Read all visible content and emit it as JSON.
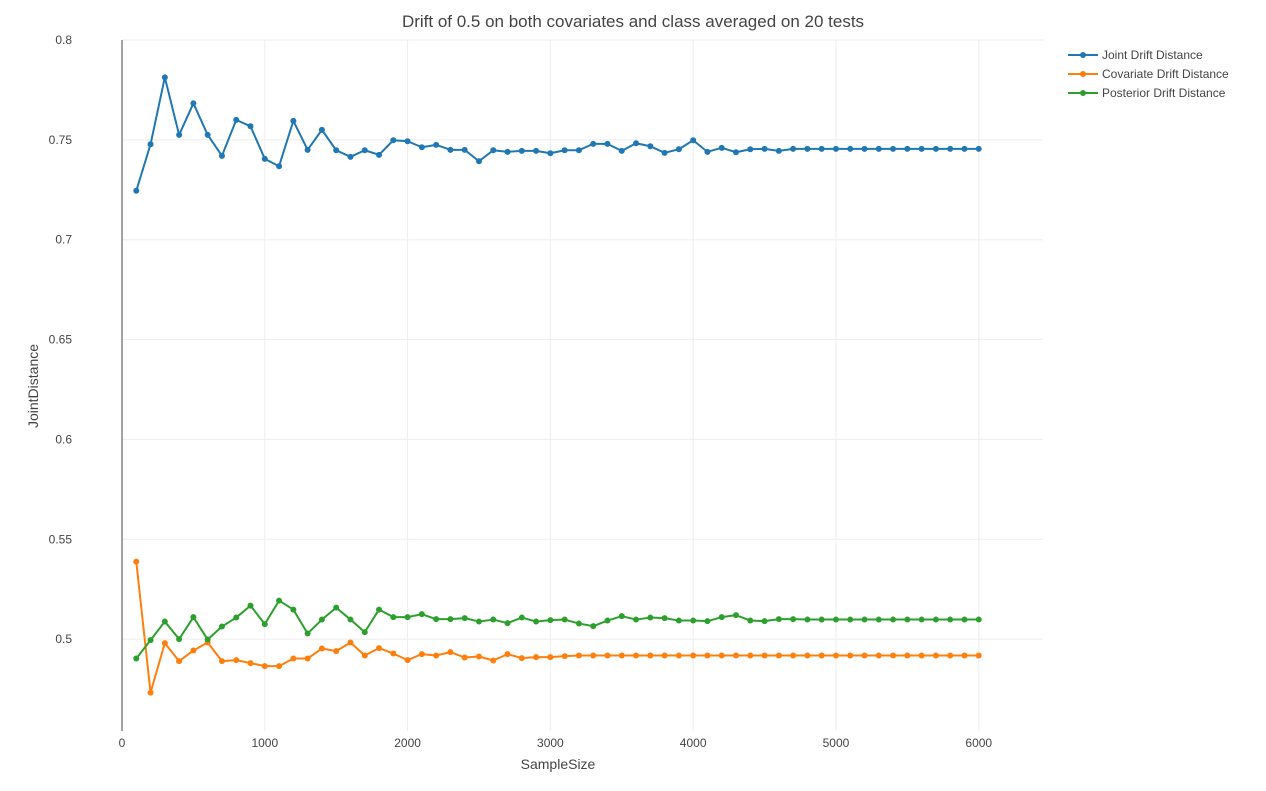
{
  "chart_data": {
    "type": "line",
    "title": "Drift of 0.5 on both covariates and class averaged on 20 tests",
    "xlabel": "SampleSize",
    "ylabel": "JointDistance",
    "xlim": [
      0,
      6450
    ],
    "ylim": [
      0.454,
      0.8
    ],
    "x_ticks": [
      "0",
      "1000",
      "2000",
      "3000",
      "4000",
      "5000",
      "6000"
    ],
    "y_ticks": [
      "0.8",
      "0.75",
      "0.7",
      "0.65",
      "0.6",
      "0.55",
      "0.5"
    ],
    "x_tick_values": [
      0,
      1000,
      2000,
      3000,
      4000,
      5000,
      6000
    ],
    "y_tick_values": [
      0.8,
      0.75,
      0.7,
      0.65,
      0.6,
      0.55,
      0.5
    ],
    "grid": true,
    "legend_position": "top-right",
    "x": [
      100,
      200,
      300,
      400,
      500,
      600,
      700,
      800,
      900,
      1000,
      1100,
      1200,
      1300,
      1400,
      1500,
      1600,
      1700,
      1800,
      1900,
      2000,
      2100,
      2200,
      2300,
      2400,
      2500,
      2600,
      2700,
      2800,
      2900,
      3000,
      3100,
      3200,
      3300,
      3400,
      3500,
      3600,
      3700,
      3800,
      3900,
      4000,
      4100,
      4200,
      4300,
      4400,
      4500,
      4600,
      4700,
      4800,
      4900,
      5000,
      5100,
      5200,
      5300,
      5400,
      5500,
      5600,
      5700,
      5800,
      5900,
      6000
    ],
    "series": [
      {
        "name": "Joint Drift Distance",
        "color": "#1f77b4",
        "values": [
          0.7245,
          0.7478,
          0.7813,
          0.7525,
          0.7683,
          0.7525,
          0.742,
          0.76,
          0.7568,
          0.7405,
          0.7368,
          0.7595,
          0.745,
          0.755,
          0.7448,
          0.7415,
          0.7448,
          0.7425,
          0.7498,
          0.7493,
          0.7463,
          0.7475,
          0.745,
          0.745,
          0.7393,
          0.7448,
          0.744,
          0.7445,
          0.7445,
          0.7433,
          0.7448,
          0.7448,
          0.748,
          0.748,
          0.7445,
          0.7483,
          0.7468,
          0.7435,
          0.7453,
          0.7498,
          0.744,
          0.746,
          0.7438,
          0.7453,
          0.7455,
          0.7445,
          0.7455,
          0.7455,
          0.7455,
          0.7455,
          0.7455,
          0.7455,
          0.7455,
          0.7455,
          0.7455,
          0.7455,
          0.7455,
          0.7455,
          0.7455,
          0.7455
        ]
      },
      {
        "name": "Covariate Drift Distance",
        "color": "#ff7f0e",
        "values": [
          0.5388,
          0.4732,
          0.498,
          0.489,
          0.4943,
          0.4983,
          0.489,
          0.4895,
          0.488,
          0.4865,
          0.4865,
          0.4903,
          0.4903,
          0.4953,
          0.494,
          0.4983,
          0.4918,
          0.4955,
          0.4928,
          0.4895,
          0.4925,
          0.4918,
          0.4935,
          0.4908,
          0.4913,
          0.4893,
          0.4925,
          0.4905,
          0.491,
          0.491,
          0.4915,
          0.4918,
          0.4918,
          0.4918,
          0.4918,
          0.4918,
          0.4918,
          0.4918,
          0.4918,
          0.4918,
          0.4918,
          0.4918,
          0.4918,
          0.4918,
          0.4918,
          0.4918,
          0.4918,
          0.4918,
          0.4918,
          0.4918,
          0.4918,
          0.4918,
          0.4918,
          0.4918,
          0.4918,
          0.4918,
          0.4918,
          0.4918,
          0.4918,
          0.4918
        ]
      },
      {
        "name": "Posterior Drift Distance",
        "color": "#2ca02c",
        "values": [
          0.4903,
          0.4995,
          0.5088,
          0.5,
          0.511,
          0.4998,
          0.5063,
          0.5108,
          0.5168,
          0.5075,
          0.5193,
          0.5148,
          0.5028,
          0.5098,
          0.5158,
          0.5098,
          0.5035,
          0.5148,
          0.511,
          0.511,
          0.5125,
          0.51,
          0.51,
          0.5105,
          0.5088,
          0.5098,
          0.508,
          0.5108,
          0.5088,
          0.5095,
          0.5098,
          0.5078,
          0.5065,
          0.5093,
          0.5115,
          0.5098,
          0.5108,
          0.5105,
          0.5093,
          0.5093,
          0.509,
          0.511,
          0.512,
          0.5093,
          0.509,
          0.51,
          0.51,
          0.5098,
          0.5098,
          0.5098,
          0.5098,
          0.5098,
          0.5098,
          0.5098,
          0.5098,
          0.5098,
          0.5098,
          0.5098,
          0.5098,
          0.5098
        ]
      }
    ]
  }
}
